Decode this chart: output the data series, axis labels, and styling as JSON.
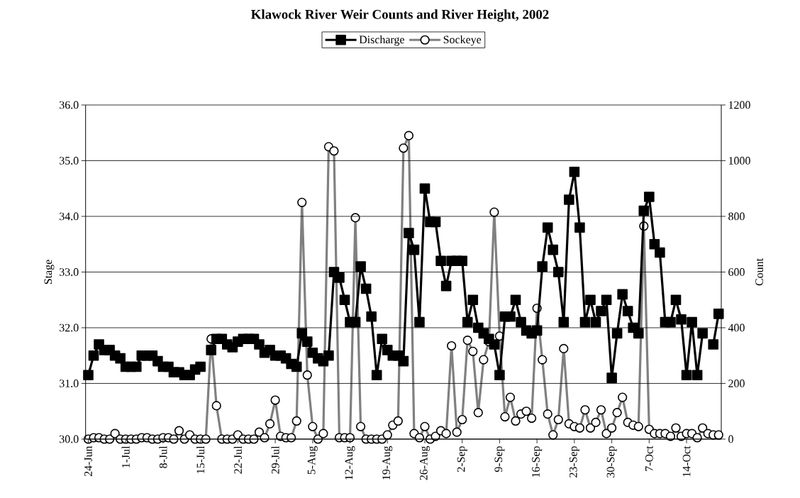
{
  "chart_data": {
    "type": "line",
    "title": "Klawock River Weir Counts and River Height, 2002",
    "ylabel": "Stage",
    "y2label": "Count",
    "categories": [
      "24-Jun",
      null,
      null,
      null,
      null,
      null,
      null,
      "1-Jul",
      null,
      null,
      null,
      null,
      null,
      null,
      "8-Jul",
      null,
      null,
      null,
      null,
      null,
      null,
      "15-Jul",
      null,
      null,
      null,
      null,
      null,
      null,
      "22-Jul",
      null,
      null,
      null,
      null,
      null,
      null,
      "29-Jul",
      null,
      null,
      null,
      null,
      null,
      null,
      "5-Aug",
      null,
      null,
      null,
      null,
      null,
      null,
      "12-Aug",
      null,
      null,
      null,
      null,
      null,
      null,
      "19-Aug",
      null,
      null,
      null,
      null,
      null,
      null,
      "26-Aug",
      null,
      null,
      null,
      null,
      null,
      null,
      "2-Sep",
      null,
      null,
      null,
      null,
      null,
      null,
      "9-Sep",
      null,
      null,
      null,
      null,
      null,
      null,
      "16-Sep",
      null,
      null,
      null,
      null,
      null,
      null,
      "23-Sep",
      null,
      null,
      null,
      null,
      null,
      null,
      "30-Sep",
      null,
      null,
      null,
      null,
      null,
      null,
      "7-Oct",
      null,
      null,
      null,
      null,
      null,
      null,
      "14-Oct",
      null,
      null,
      null,
      null,
      null,
      null
    ],
    "series": [
      {
        "name": "Discharge",
        "color": "#000000",
        "axis": "y",
        "marker": "square",
        "values": [
          31.15,
          31.5,
          31.7,
          31.6,
          31.6,
          31.5,
          31.45,
          31.3,
          31.3,
          31.3,
          31.5,
          31.5,
          31.5,
          31.4,
          31.3,
          31.3,
          31.2,
          31.2,
          31.15,
          31.15,
          31.25,
          31.3,
          null,
          31.6,
          31.8,
          31.8,
          31.7,
          31.65,
          31.75,
          31.8,
          31.8,
          31.8,
          31.7,
          31.55,
          31.6,
          31.5,
          31.5,
          31.45,
          31.35,
          31.3,
          31.9,
          31.75,
          31.55,
          31.45,
          31.4,
          31.5,
          33.0,
          32.9,
          32.5,
          32.1,
          32.1,
          33.1,
          32.7,
          32.2,
          31.15,
          31.8,
          31.6,
          31.5,
          31.5,
          31.4,
          33.7,
          33.4,
          32.1,
          34.5,
          33.9,
          33.9,
          33.2,
          32.75,
          33.2,
          33.2,
          33.2,
          32.1,
          32.5,
          32.0,
          31.9,
          31.8,
          31.7,
          31.15,
          32.2,
          32.2,
          32.5,
          32.1,
          31.95,
          31.9,
          31.95,
          33.1,
          33.8,
          33.4,
          33.0,
          32.1,
          34.3,
          34.8,
          33.8,
          32.1,
          32.5,
          32.1,
          32.3,
          32.5,
          31.1,
          31.9,
          32.6,
          32.3,
          32.0,
          31.9,
          34.1,
          34.35,
          33.5,
          33.35,
          32.1,
          32.1,
          32.5,
          32.15,
          31.15,
          32.1,
          31.15,
          31.9,
          null,
          31.7,
          32.25
        ]
      },
      {
        "name": "Sockeye",
        "color": "#808080",
        "axis": "y2",
        "marker": "circle",
        "values": [
          0,
          5,
          5,
          0,
          0,
          20,
          0,
          0,
          0,
          0,
          5,
          5,
          0,
          0,
          5,
          5,
          0,
          30,
          0,
          15,
          0,
          0,
          0,
          360,
          120,
          0,
          0,
          0,
          15,
          0,
          0,
          0,
          25,
          5,
          55,
          140,
          10,
          5,
          5,
          65,
          850,
          230,
          45,
          0,
          20,
          1050,
          1035,
          5,
          5,
          5,
          795,
          45,
          0,
          0,
          0,
          0,
          15,
          50,
          65,
          1045,
          1090,
          20,
          5,
          45,
          0,
          10,
          30,
          20,
          335,
          25,
          70,
          355,
          315,
          95,
          285,
          350,
          815,
          370,
          80,
          150,
          65,
          90,
          100,
          75,
          470,
          285,
          90,
          15,
          70,
          325,
          55,
          45,
          40,
          105,
          40,
          60,
          105,
          20,
          40,
          95,
          150,
          60,
          50,
          45,
          765,
          35,
          20,
          20,
          20,
          10,
          40,
          10,
          20,
          20,
          5,
          40,
          20,
          15,
          15
        ]
      }
    ],
    "ylim": [
      30,
      36
    ],
    "yticks": [
      {
        "value": 30,
        "label": "30.0"
      },
      {
        "value": 31,
        "label": "31.0"
      },
      {
        "value": 32,
        "label": "32.0"
      },
      {
        "value": 33,
        "label": "33.0"
      },
      {
        "value": 34,
        "label": "34.0"
      },
      {
        "value": 35,
        "label": "35.0"
      },
      {
        "value": 36,
        "label": "36.0"
      }
    ],
    "y2lim": [
      0,
      1200
    ],
    "y2ticks": [
      0,
      200,
      400,
      600,
      800,
      1000,
      1200
    ],
    "grid": "y",
    "legend": "top",
    "line_style": "solid"
  }
}
